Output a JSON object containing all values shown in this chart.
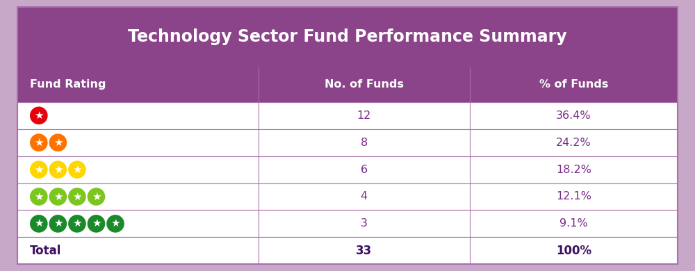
{
  "title": "Technology Sector Fund Performance Summary",
  "title_bg_color": "#8B4489",
  "title_text_color": "#FFFFFF",
  "header_bg_color": "#8B4489",
  "header_text_color": "#FFFFFF",
  "col_headers": [
    "Fund Rating",
    "No. of Funds",
    "% of Funds"
  ],
  "rows": [
    {
      "stars": 1,
      "star_color": "#E8000D",
      "no_funds": "12",
      "pct_funds": "36.4%"
    },
    {
      "stars": 2,
      "star_color": "#FF7200",
      "no_funds": "8",
      "pct_funds": "24.2%"
    },
    {
      "stars": 3,
      "star_color": "#FFD700",
      "no_funds": "6",
      "pct_funds": "18.2%"
    },
    {
      "stars": 4,
      "star_color": "#7DC620",
      "no_funds": "4",
      "pct_funds": "12.1%"
    },
    {
      "stars": 5,
      "star_color": "#1A8A2A",
      "no_funds": "3",
      "pct_funds": "9.1%"
    }
  ],
  "total_row": {
    "label": "Total",
    "no_funds": "33",
    "pct_funds": "100%"
  },
  "row_bg_color": "#FFFFFF",
  "row_text_color": "#7B2D8B",
  "grid_color": "#AA70AA",
  "total_row_bg_color": "#FFFFFF",
  "total_text_color": "#3B1060",
  "outer_border_color": "#C0A0C0",
  "fig_bg_color": "#C8A8C8",
  "figsize": [
    10.0,
    3.9
  ],
  "dpi": 100,
  "col_splits": [
    0.0,
    0.365,
    0.685,
    1.0
  ]
}
